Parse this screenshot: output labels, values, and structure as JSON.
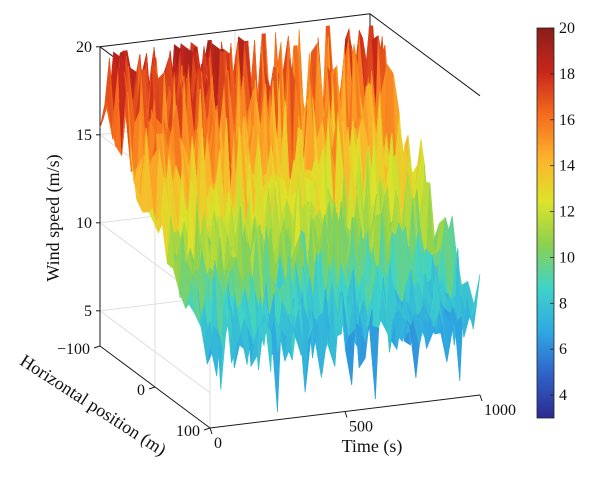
{
  "chart_data": {
    "type": "surface",
    "title": "",
    "xlabel": "Time (s)",
    "ylabel": "Horizontal position (m)",
    "zlabel": "Wind speed (m/s)",
    "x_range": [
      0,
      1000
    ],
    "y_range": [
      -100,
      100
    ],
    "z_range": [
      3,
      20
    ],
    "x_ticks": [
      "0",
      "500",
      "1000"
    ],
    "y_ticks": [
      "−100",
      "0",
      "100"
    ],
    "z_ticks": [
      "5",
      "10",
      "15",
      "20"
    ],
    "colorbar": {
      "range": [
        3,
        20
      ],
      "ticks": [
        "4",
        "6",
        "8",
        "10",
        "12",
        "14",
        "16",
        "18",
        "20"
      ],
      "colormap": [
        "#2b2a8f",
        "#2f63c8",
        "#2fa8e2",
        "#3fd3c8",
        "#8bd14f",
        "#dde32a",
        "#fdb22b",
        "#f56b1c",
        "#c8261c",
        "#8a1e1a"
      ]
    },
    "surface_summary": {
      "mean_speed_at_front_edge": 8,
      "max_peak": 19,
      "min_trough": 3.5
    },
    "grid": true
  }
}
